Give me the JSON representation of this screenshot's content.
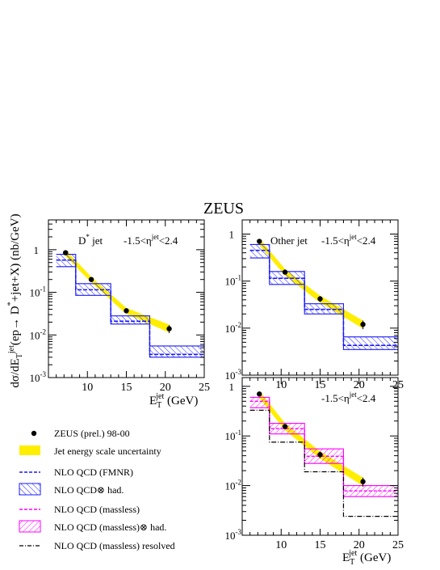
{
  "figure": {
    "title": "ZEUS",
    "ylabel_parts": [
      "dσ/dE",
      "T",
      "jet",
      "(ep→ D",
      "*",
      "+jet+X) (nb/GeV)"
    ],
    "xlabel_parts": [
      "E",
      "T",
      "jet",
      " (GeV)"
    ]
  },
  "legend": {
    "entries": [
      {
        "id": "data",
        "label": "ZEUS (prel.) 98-00",
        "color": "#000000"
      },
      {
        "id": "jes",
        "label": "Jet energy scale uncertainty",
        "color": "#ffee00"
      },
      {
        "id": "fmnr",
        "label": "NLO QCD (FMNR)",
        "color": "#1a1aff"
      },
      {
        "id": "fmnr_had",
        "label": "NLO QCD",
        "label_suffix": " had.",
        "color": "#1a1aff"
      },
      {
        "id": "massless",
        "label": "NLO QCD (massless)",
        "color": "#ff00ff"
      },
      {
        "id": "massless_had",
        "label": "NLO QCD (massless)",
        "label_suffix": " had.",
        "color": "#ff00ff"
      },
      {
        "id": "resolved",
        "label": "NLO QCD (massless) resolved",
        "color": "#000000"
      }
    ]
  },
  "chart_data": [
    {
      "type": "line",
      "panel": "top-left",
      "label_left": "D",
      "label_left_sup": "*",
      "label_left_tail": " jet",
      "eta_label": {
        "pre": "-1.5<η",
        "sup": "jet",
        "post": "<2.4"
      },
      "xlim": [
        5,
        25
      ],
      "ylim": [
        0.001,
        5
      ],
      "yscale": "log",
      "xticks": [
        10,
        15,
        20,
        25
      ],
      "yticks": [
        {
          "v": 0.001,
          "t": "10",
          "e": "-3"
        },
        {
          "v": 0.01,
          "t": "10",
          "e": "-2"
        },
        {
          "v": 0.1,
          "t": "10",
          "e": "-1"
        },
        {
          "v": 1,
          "t": "1"
        }
      ],
      "bins": [
        6,
        8.5,
        13,
        18,
        25
      ],
      "data": [
        {
          "x": 7.2,
          "y": 0.85,
          "err": 0.06
        },
        {
          "x": 10.5,
          "y": 0.2,
          "err": 0.015
        },
        {
          "x": 15,
          "y": 0.037,
          "err": 0.004
        },
        {
          "x": 20.5,
          "y": 0.014,
          "err": 0.003
        }
      ],
      "jes_band": [
        {
          "x": 7.2,
          "lo": 0.7,
          "hi": 1.0
        },
        {
          "x": 10.5,
          "lo": 0.17,
          "hi": 0.23
        },
        {
          "x": 15,
          "lo": 0.031,
          "hi": 0.043
        },
        {
          "x": 20.5,
          "lo": 0.0115,
          "hi": 0.0175
        }
      ],
      "fmnr": [
        0.57,
        0.115,
        0.021,
        0.0035
      ],
      "fmnr_band": [
        [
          0.4,
          0.78
        ],
        [
          0.085,
          0.16
        ],
        [
          0.018,
          0.028
        ],
        [
          0.003,
          0.0055
        ]
      ]
    },
    {
      "type": "line",
      "panel": "top-right",
      "label_left": "Other jet",
      "eta_label": {
        "pre": "-1.5<η",
        "sup": "jet",
        "post": "<2.4"
      },
      "xlim": [
        5,
        25
      ],
      "ylim": [
        0.001,
        2
      ],
      "yscale": "log",
      "xticks": [
        10,
        15,
        20,
        25
      ],
      "yticks": [
        {
          "v": 0.001,
          "t": "10",
          "e": "-3"
        },
        {
          "v": 0.01,
          "t": "10",
          "e": "-2"
        },
        {
          "v": 0.1,
          "t": "10",
          "e": "-1"
        },
        {
          "v": 1,
          "t": "1"
        }
      ],
      "bins": [
        6,
        8.5,
        13,
        18,
        25
      ],
      "data": [
        {
          "x": 7.2,
          "y": 0.7,
          "err": 0.05
        },
        {
          "x": 10.5,
          "y": 0.155,
          "err": 0.012
        },
        {
          "x": 15,
          "y": 0.042,
          "err": 0.006
        },
        {
          "x": 20.5,
          "y": 0.012,
          "err": 0.0025
        }
      ],
      "jes_band": [
        {
          "x": 7.2,
          "lo": 0.58,
          "hi": 0.82
        },
        {
          "x": 10.5,
          "lo": 0.13,
          "hi": 0.18
        },
        {
          "x": 15,
          "lo": 0.035,
          "hi": 0.049
        },
        {
          "x": 20.5,
          "lo": 0.0098,
          "hi": 0.0145
        }
      ],
      "fmnr": [
        0.45,
        0.115,
        0.025,
        0.0043
      ],
      "fmnr_band": [
        [
          0.31,
          0.6
        ],
        [
          0.085,
          0.16
        ],
        [
          0.02,
          0.033
        ],
        [
          0.0035,
          0.0065
        ]
      ]
    },
    {
      "type": "line",
      "panel": "bottom-right",
      "eta_label": {
        "pre": "-1.5<η",
        "sup": "jet",
        "post": "<2.4"
      },
      "xlim": [
        5,
        25
      ],
      "ylim": [
        0.001,
        1.5
      ],
      "yscale": "log",
      "xticks": [
        10,
        15,
        20,
        25
      ],
      "yticks": [
        {
          "v": 0.001,
          "t": "10",
          "e": "-3"
        },
        {
          "v": 0.01,
          "t": "10",
          "e": "-2"
        },
        {
          "v": 0.1,
          "t": "10",
          "e": "-1"
        },
        {
          "v": 1,
          "t": "1"
        }
      ],
      "bins": [
        6,
        8.5,
        13,
        18,
        25
      ],
      "data": [
        {
          "x": 7.2,
          "y": 0.7,
          "err": 0.05
        },
        {
          "x": 10.5,
          "y": 0.155,
          "err": 0.012
        },
        {
          "x": 15,
          "y": 0.042,
          "err": 0.006
        },
        {
          "x": 20.5,
          "y": 0.012,
          "err": 0.0025
        }
      ],
      "jes_band": [
        {
          "x": 7.2,
          "lo": 0.58,
          "hi": 0.82
        },
        {
          "x": 10.5,
          "lo": 0.13,
          "hi": 0.18
        },
        {
          "x": 15,
          "lo": 0.035,
          "hi": 0.049
        },
        {
          "x": 20.5,
          "lo": 0.0098,
          "hi": 0.0145
        }
      ],
      "massless": [
        0.5,
        0.14,
        0.039,
        0.0078
      ],
      "massless_band": [
        [
          0.37,
          0.6
        ],
        [
          0.11,
          0.18
        ],
        [
          0.028,
          0.055
        ],
        [
          0.006,
          0.01
        ]
      ],
      "resolved": [
        0.33,
        0.075,
        0.019,
        0.0024
      ]
    }
  ]
}
